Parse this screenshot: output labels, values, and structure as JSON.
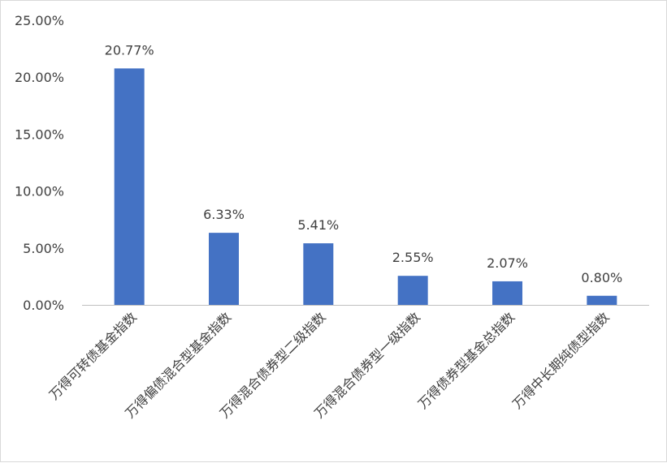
{
  "chart_data": {
    "type": "bar",
    "categories": [
      "万得可转债基金指数",
      "万得偏债混合型基金指数",
      "万得混合债券型二级指数",
      "万得混合债券型一级指数",
      "万得债券型基金总指数",
      "万得中长期纯债型指数"
    ],
    "values": [
      20.77,
      6.33,
      5.41,
      2.55,
      2.07,
      0.8
    ],
    "data_labels": [
      "20.77%",
      "6.33%",
      "5.41%",
      "2.55%",
      "2.07%",
      "0.80%"
    ],
    "y_ticks": [
      "0.00%",
      "5.00%",
      "10.00%",
      "15.00%",
      "20.00%",
      "25.00%"
    ],
    "ylim": [
      0,
      25
    ],
    "bar_color": "#4472C4",
    "grid": false,
    "legend": "none",
    "title": "",
    "xlabel": "",
    "ylabel": ""
  }
}
